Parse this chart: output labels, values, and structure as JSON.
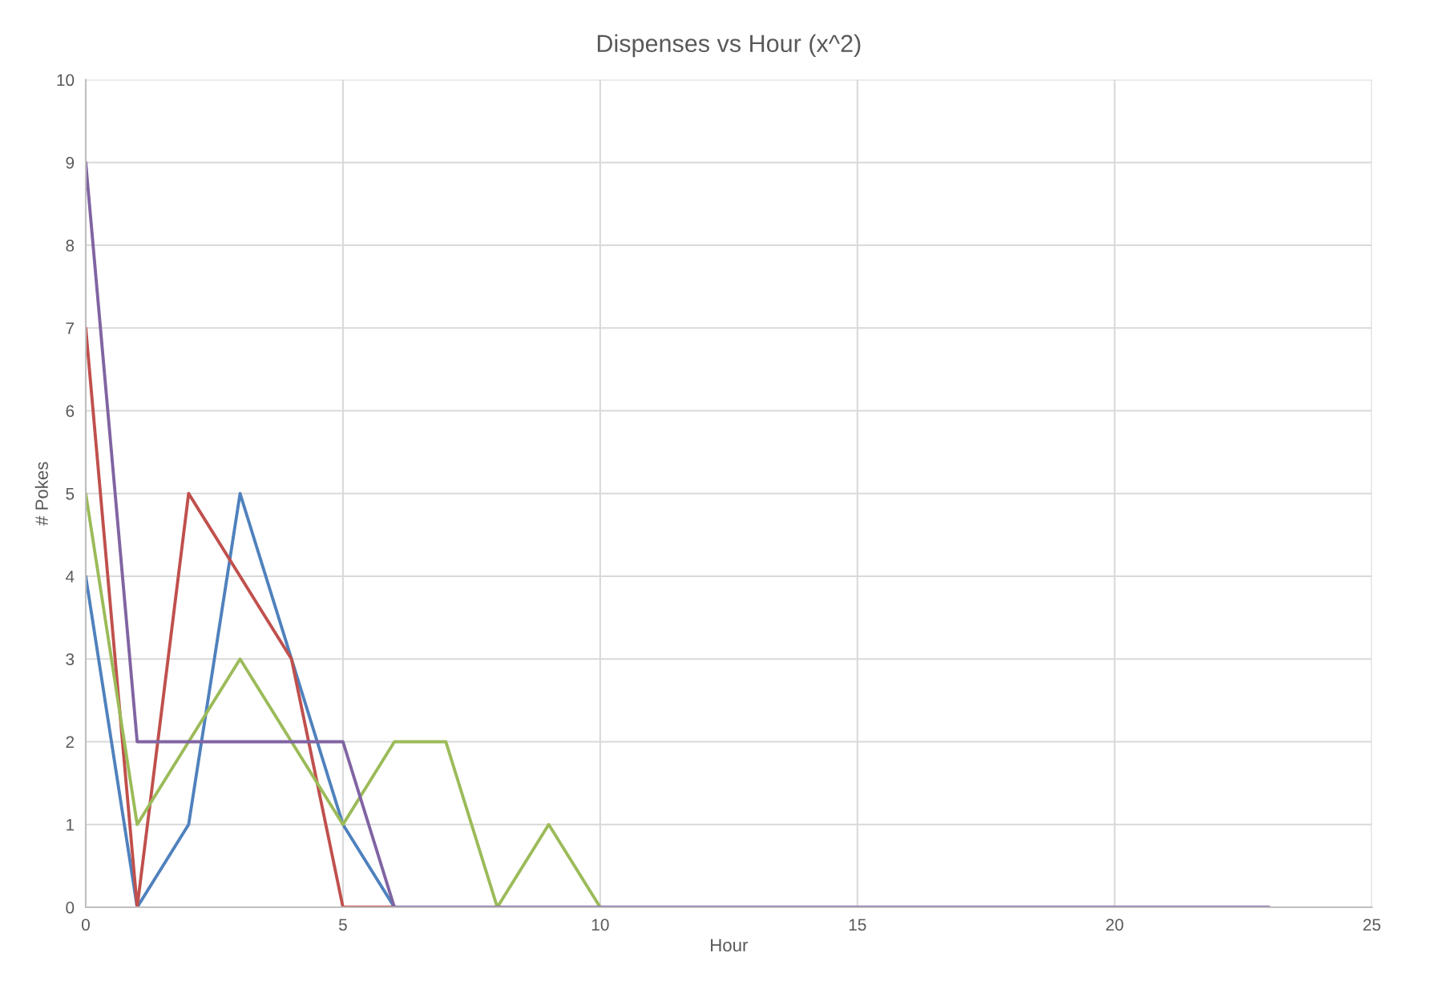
{
  "chart_data": {
    "type": "line",
    "title": "Dispenses vs Hour (x^2)",
    "xlabel": "Hour",
    "ylabel": "# Pokes",
    "x": [
      0,
      1,
      2,
      3,
      4,
      5,
      6,
      7,
      8,
      9,
      10,
      11,
      12,
      13,
      14,
      15,
      16,
      17,
      18,
      19,
      20,
      21,
      22,
      23
    ],
    "series": [
      {
        "color": "#4f81bd",
        "values": [
          4,
          0,
          1,
          5,
          3,
          1,
          0,
          null,
          null,
          null,
          null,
          null,
          null,
          null,
          null,
          null,
          null,
          null,
          null,
          null,
          null,
          null,
          null,
          null
        ]
      },
      {
        "color": "#c0504d",
        "values": [
          7,
          0,
          5,
          4,
          3,
          0,
          0,
          null,
          null,
          null,
          null,
          null,
          null,
          null,
          null,
          null,
          null,
          null,
          null,
          null,
          null,
          null,
          null,
          null
        ]
      },
      {
        "color": "#9bbb59",
        "values": [
          5,
          1,
          2,
          3,
          2,
          1,
          2,
          2,
          0,
          1,
          0,
          null,
          null,
          null,
          null,
          null,
          null,
          null,
          null,
          null,
          null,
          null,
          null,
          null
        ]
      },
      {
        "color": "#8064a2",
        "values": [
          9,
          2,
          2,
          2,
          2,
          2,
          0,
          0,
          0,
          0,
          0,
          0,
          0,
          0,
          0,
          0,
          0,
          0,
          0,
          0,
          0,
          0,
          0,
          0
        ]
      }
    ],
    "xlim": [
      0,
      25
    ],
    "xticks": [
      0,
      5,
      10,
      15,
      20,
      25
    ],
    "ylim": [
      0,
      10
    ],
    "yticks": [
      0,
      1,
      2,
      3,
      4,
      5,
      6,
      7,
      8,
      9,
      10
    ],
    "grid": true,
    "marker": "none",
    "line_style": "solid"
  }
}
